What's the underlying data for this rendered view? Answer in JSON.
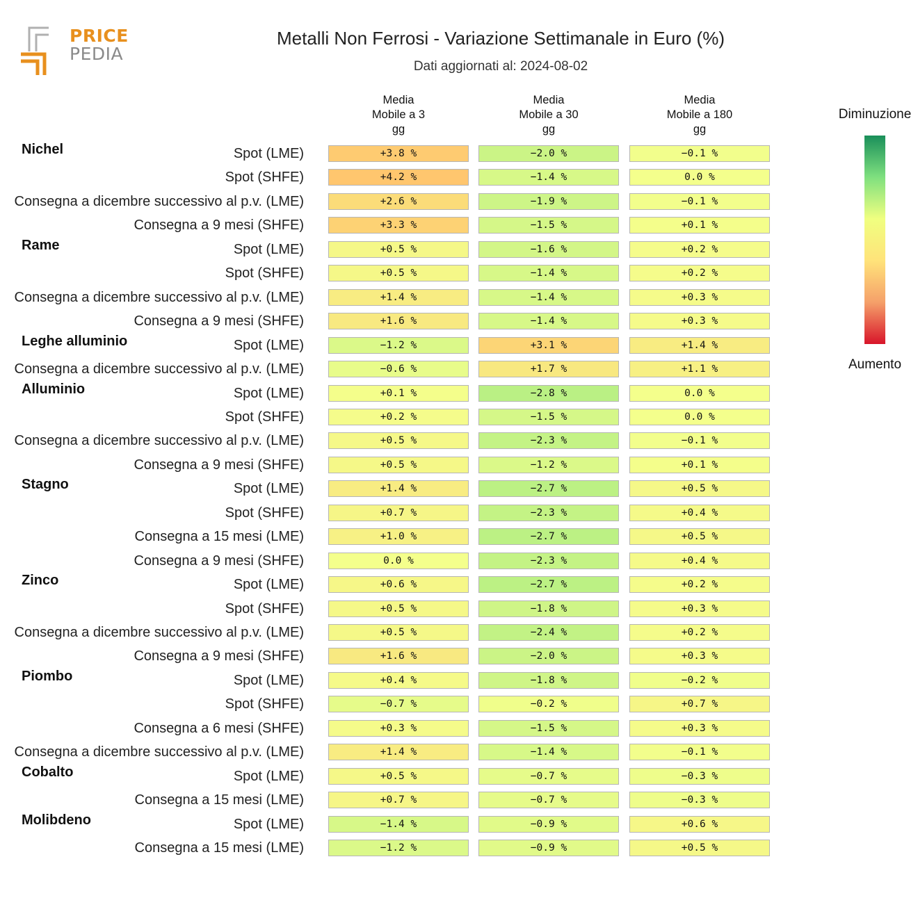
{
  "logo": {
    "word_top": "PRICE",
    "word_bottom": "PEDIA"
  },
  "chart_data": {
    "type": "table",
    "title": "Metalli Non Ferrosi - Variazione Settimanale in Euro (%)",
    "subtitle": "Dati aggiornati al: 2024-08-02",
    "columns": [
      {
        "lines": [
          "Media",
          "Mobile a 3",
          "gg"
        ]
      },
      {
        "lines": [
          "Media",
          "Mobile a 30",
          "gg"
        ]
      },
      {
        "lines": [
          "Media",
          "Mobile a 180",
          "gg"
        ]
      }
    ],
    "unit": "%",
    "groups": [
      {
        "name": "Nichel",
        "rows": [
          {
            "label": "Spot (LME)",
            "values": [
              3.8,
              -2.0,
              -0.1
            ]
          },
          {
            "label": "Spot (SHFE)",
            "values": [
              4.2,
              -1.4,
              0.0
            ]
          },
          {
            "label": "Consegna a dicembre successivo al p.v. (LME)",
            "values": [
              2.6,
              -1.9,
              -0.1
            ]
          },
          {
            "label": "Consegna a 9 mesi (SHFE)",
            "values": [
              3.3,
              -1.5,
              0.1
            ]
          }
        ]
      },
      {
        "name": "Rame",
        "rows": [
          {
            "label": "Spot (LME)",
            "values": [
              0.5,
              -1.6,
              0.2
            ]
          },
          {
            "label": "Spot (SHFE)",
            "values": [
              0.5,
              -1.4,
              0.2
            ]
          },
          {
            "label": "Consegna a dicembre successivo al p.v. (LME)",
            "values": [
              1.4,
              -1.4,
              0.3
            ]
          },
          {
            "label": "Consegna a 9 mesi (SHFE)",
            "values": [
              1.6,
              -1.4,
              0.3
            ]
          }
        ]
      },
      {
        "name": "Leghe alluminio",
        "rows": [
          {
            "label": "Spot (LME)",
            "values": [
              -1.2,
              3.1,
              1.4
            ]
          },
          {
            "label": "Consegna a dicembre successivo al p.v. (LME)",
            "values": [
              -0.6,
              1.7,
              1.1
            ]
          }
        ]
      },
      {
        "name": "Alluminio",
        "rows": [
          {
            "label": "Spot (LME)",
            "values": [
              0.1,
              -2.8,
              0.0
            ]
          },
          {
            "label": "Spot (SHFE)",
            "values": [
              0.2,
              -1.5,
              0.0
            ]
          },
          {
            "label": "Consegna a dicembre successivo al p.v. (LME)",
            "values": [
              0.5,
              -2.3,
              -0.1
            ]
          },
          {
            "label": "Consegna a 9 mesi (SHFE)",
            "values": [
              0.5,
              -1.2,
              0.1
            ]
          }
        ]
      },
      {
        "name": "Stagno",
        "rows": [
          {
            "label": "Spot (LME)",
            "values": [
              1.4,
              -2.7,
              0.5
            ]
          },
          {
            "label": "Spot (SHFE)",
            "values": [
              0.7,
              -2.3,
              0.4
            ]
          },
          {
            "label": "Consegna a 15 mesi (LME)",
            "values": [
              1.0,
              -2.7,
              0.5
            ]
          },
          {
            "label": "Consegna a 9 mesi (SHFE)",
            "values": [
              0.0,
              -2.3,
              0.4
            ]
          }
        ]
      },
      {
        "name": "Zinco",
        "rows": [
          {
            "label": "Spot (LME)",
            "values": [
              0.6,
              -2.7,
              0.2
            ]
          },
          {
            "label": "Spot (SHFE)",
            "values": [
              0.5,
              -1.8,
              0.3
            ]
          },
          {
            "label": "Consegna a dicembre successivo al p.v. (LME)",
            "values": [
              0.5,
              -2.4,
              0.2
            ]
          },
          {
            "label": "Consegna a 9 mesi (SHFE)",
            "values": [
              1.6,
              -2.0,
              0.3
            ]
          }
        ]
      },
      {
        "name": "Piombo",
        "rows": [
          {
            "label": "Spot (LME)",
            "values": [
              0.4,
              -1.8,
              -0.2
            ]
          },
          {
            "label": "Spot (SHFE)",
            "values": [
              -0.7,
              -0.2,
              0.7
            ]
          },
          {
            "label": "Consegna a 6 mesi (SHFE)",
            "values": [
              0.3,
              -1.5,
              0.3
            ]
          },
          {
            "label": "Consegna a dicembre successivo al p.v. (LME)",
            "values": [
              1.4,
              -1.4,
              -0.1
            ]
          }
        ]
      },
      {
        "name": "Cobalto",
        "rows": [
          {
            "label": "Spot (LME)",
            "values": [
              0.5,
              -0.7,
              -0.3
            ]
          },
          {
            "label": "Consegna a 15 mesi (LME)",
            "values": [
              0.7,
              -0.7,
              -0.3
            ]
          }
        ]
      },
      {
        "name": "Molibdeno",
        "rows": [
          {
            "label": "Spot (LME)",
            "values": [
              -1.4,
              -0.9,
              0.6
            ]
          },
          {
            "label": "Consegna a 15 mesi (LME)",
            "values": [
              -1.2,
              -0.9,
              0.5
            ]
          }
        ]
      }
    ],
    "legend": {
      "top_label": "Diminuzione",
      "bottom_label": "Aumento",
      "colors_top_to_bottom": [
        "#1a8f5a",
        "#7fe07f",
        "#f0ff80",
        "#ffe37a",
        "#f5a06a",
        "#d8152a"
      ]
    }
  }
}
